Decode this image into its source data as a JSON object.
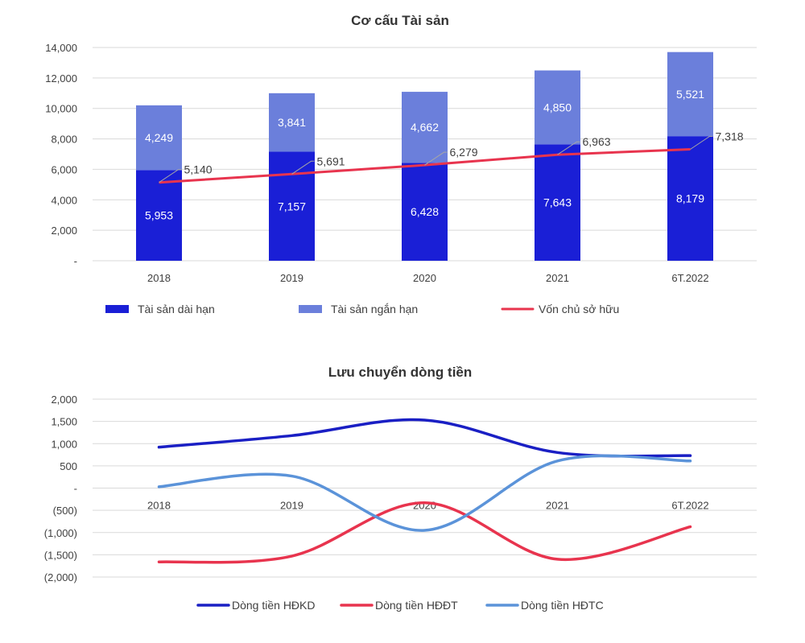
{
  "chart_data": [
    {
      "type": "bar",
      "title": "Cơ cấu Tài sản",
      "categories": [
        "2018",
        "2019",
        "2020",
        "2021",
        "6T.2022"
      ],
      "ylim": [
        0,
        14000
      ],
      "yticks": [
        "-",
        "2,000",
        "4,000",
        "6,000",
        "8,000",
        "10,000",
        "12,000",
        "14,000"
      ],
      "grid": true,
      "legend_position": "bottom",
      "series": [
        {
          "name": "Tài sản dài hạn",
          "kind": "stacked-bar",
          "color": "#1a1fd6",
          "values": [
            5953,
            7157,
            6428,
            7643,
            8179
          ],
          "labels": [
            "5,953",
            "7,157",
            "6,428",
            "7,643",
            "8,179"
          ]
        },
        {
          "name": "Tài sản ngắn hạn",
          "kind": "stacked-bar",
          "color": "#6b7fdb",
          "values": [
            4249,
            3841,
            4662,
            4850,
            5521
          ],
          "labels": [
            "4,249",
            "3,841",
            "4,662",
            "4,850",
            "5,521"
          ]
        },
        {
          "name": "Vốn chủ sở hữu",
          "kind": "line",
          "color": "#e8344e",
          "values": [
            5140,
            5691,
            6279,
            6963,
            7318
          ],
          "labels": [
            "5,140",
            "5,691",
            "6,279",
            "6,963",
            "7,318"
          ]
        }
      ]
    },
    {
      "type": "line",
      "title": "Lưu chuyển dòng tiền",
      "categories": [
        "2018",
        "2019",
        "2020",
        "2021",
        "6T.2022"
      ],
      "ylim": [
        -2000,
        2000
      ],
      "yticks": [
        "(2,000)",
        "(1,500)",
        "(1,000)",
        "(500)",
        "-",
        "500",
        "1,000",
        "1,500",
        "2,000"
      ],
      "grid": true,
      "legend_position": "bottom",
      "series": [
        {
          "name": "Dòng tiền HĐKD",
          "color": "#1a1fc4",
          "values": [
            920,
            1180,
            1530,
            800,
            730
          ]
        },
        {
          "name": "Dòng tiền HĐĐT",
          "color": "#e8344e",
          "values": [
            -1660,
            -1530,
            -330,
            -1600,
            -870
          ]
        },
        {
          "name": "Dòng tiền HĐTC",
          "color": "#5b93d9",
          "values": [
            30,
            270,
            -950,
            610,
            610
          ]
        }
      ]
    }
  ]
}
